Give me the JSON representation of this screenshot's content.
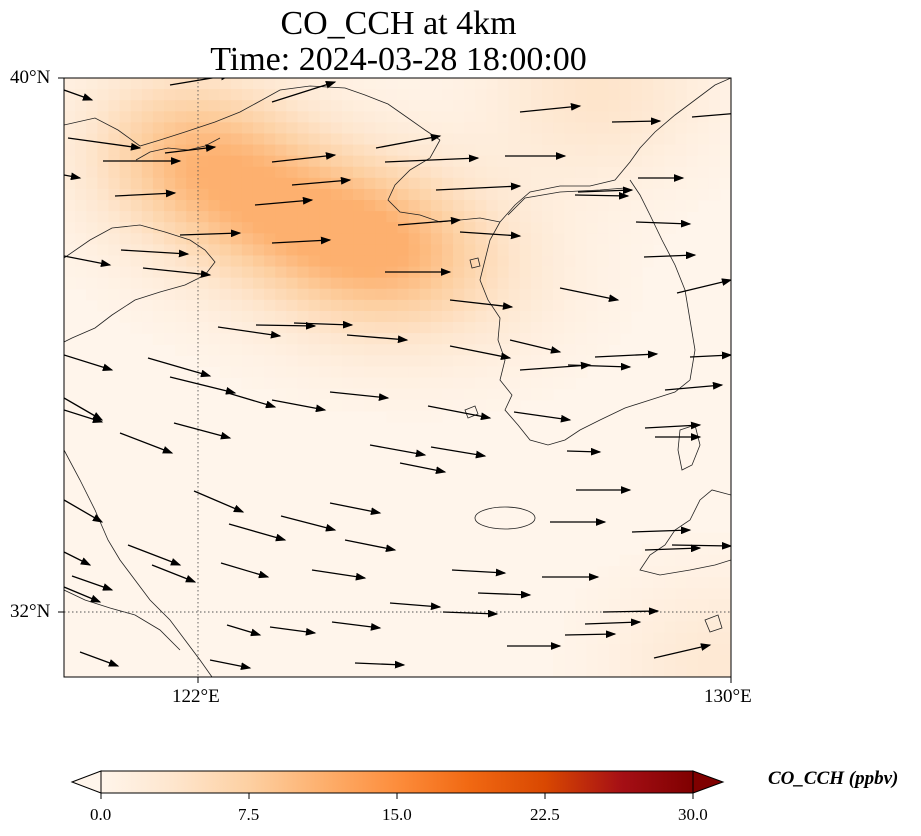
{
  "title": "CO_CCH at 4km",
  "time_label": "Time: 2024-03-28 18:00:00",
  "lat_ticks": [
    "40°N",
    "32°N"
  ],
  "lon_ticks": [
    "122°E",
    "130°E"
  ],
  "colorbar": {
    "label": "CO_CCH (ppbv)",
    "tick_labels": [
      "0.0",
      "7.5",
      "15.0",
      "22.5",
      "30.0"
    ],
    "min": 0,
    "max": 30,
    "extend": "both",
    "colormap": [
      "#fff5eb",
      "#fee6ce",
      "#fdd0a2",
      "#fdae6b",
      "#fd8d3c",
      "#f16913",
      "#d94801",
      "#a50f15",
      "#7f0000"
    ]
  },
  "map": {
    "lat_range": [
      31,
      40
    ],
    "lon_range": [
      120,
      130
    ],
    "gridlines": "dotted",
    "field_max": 11,
    "hotspots": [
      {
        "lon": 121.8,
        "lat": 38.9,
        "value": 8
      },
      {
        "lon": 123.2,
        "lat": 38.0,
        "value": 7
      },
      {
        "lon": 124.8,
        "lat": 37.4,
        "value": 9
      },
      {
        "lon": 126.4,
        "lat": 37.0,
        "value": 2
      },
      {
        "lon": 128.0,
        "lat": 39.8,
        "value": 4
      },
      {
        "lon": 129.8,
        "lat": 31.2,
        "value": 3
      }
    ]
  }
}
